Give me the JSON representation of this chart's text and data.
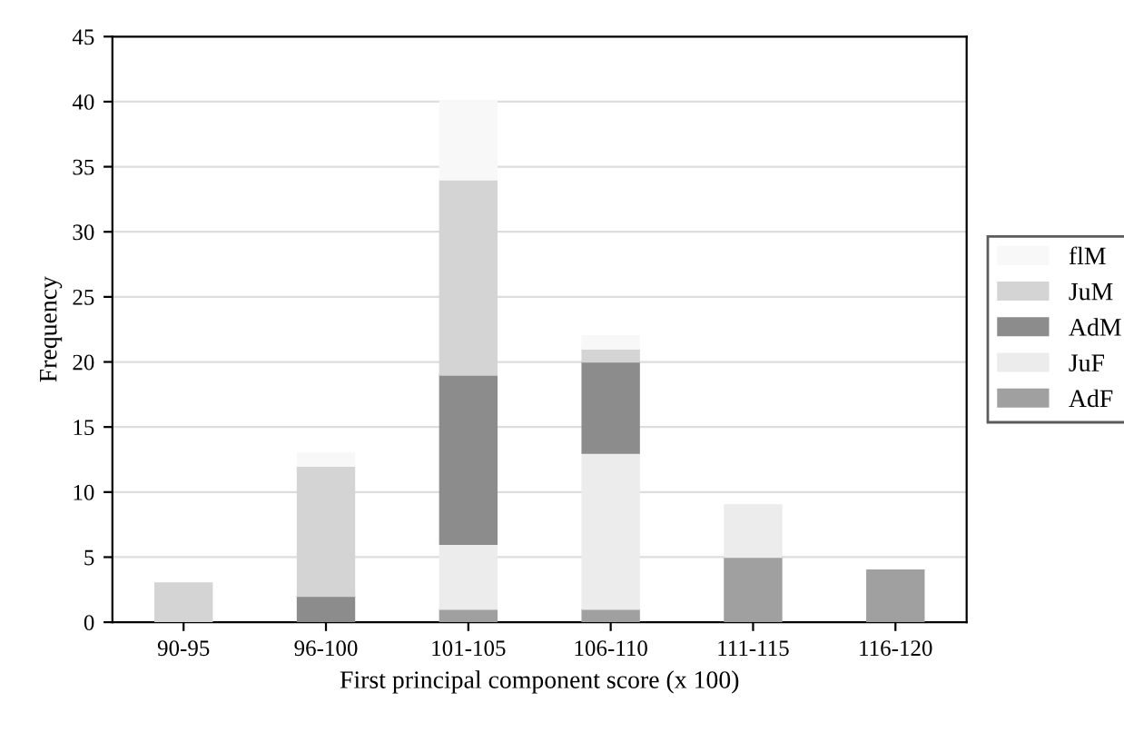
{
  "chart_data": {
    "type": "bar",
    "stacked": true,
    "xlabel": "First principal component score (x 100)",
    "ylabel": "Frequency",
    "categories": [
      "90-95",
      "96-100",
      "101-105",
      "106-110",
      "111-115",
      "116-120"
    ],
    "series": [
      {
        "name": "AdF",
        "color": "#a0a0a0",
        "values": [
          0,
          0,
          1,
          1,
          5,
          4
        ]
      },
      {
        "name": "JuF",
        "color": "#ececec",
        "values": [
          0,
          0,
          5,
          12,
          4,
          0
        ]
      },
      {
        "name": "AdM",
        "color": "#8c8c8c",
        "values": [
          0,
          2,
          13,
          7,
          0,
          0
        ]
      },
      {
        "name": "JuM",
        "color": "#d4d4d4",
        "values": [
          3,
          10,
          15,
          1,
          0,
          0
        ]
      },
      {
        "name": "flM",
        "color": "#f8f8f8",
        "values": [
          0,
          1,
          6,
          1,
          0,
          0
        ]
      }
    ],
    "ylim": [
      0,
      45
    ],
    "yticks": [
      0,
      5,
      10,
      15,
      20,
      25,
      30,
      35,
      40,
      45
    ],
    "grid": "y",
    "legend": "right"
  }
}
